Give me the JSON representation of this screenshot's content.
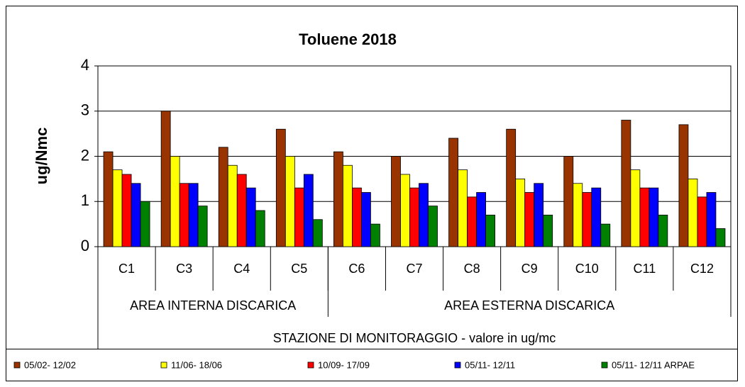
{
  "chart_data": {
    "type": "bar",
    "title": "Toluene 2018",
    "y_label": "ug/Nmc",
    "x_label": "STAZIONE DI MONITORAGGIO - valore in ug/mc",
    "categories": [
      "C1",
      "C3",
      "C4",
      "C5",
      "C6",
      "C7",
      "C8",
      "C9",
      "C10",
      "C11",
      "C12"
    ],
    "groups": [
      {
        "label": "AREA INTERNA DISCARICA",
        "count": 4
      },
      {
        "label": "AREA ESTERNA DISCARICA",
        "count": 7
      }
    ],
    "series": [
      {
        "name": "05/02- 12/02",
        "color": "#993300",
        "values": [
          2.1,
          3.0,
          2.2,
          2.6,
          2.1,
          2.0,
          2.4,
          2.6,
          2.0,
          2.8,
          2.7
        ]
      },
      {
        "name": "11/06- 18/06",
        "color": "#ffff00",
        "values": [
          1.7,
          2.0,
          1.8,
          2.0,
          1.8,
          1.6,
          1.7,
          1.5,
          1.4,
          1.7,
          1.5
        ]
      },
      {
        "name": "10/09- 17/09",
        "color": "#ff0000",
        "values": [
          1.6,
          1.4,
          1.6,
          1.3,
          1.3,
          1.3,
          1.1,
          1.2,
          1.2,
          1.3,
          1.1
        ]
      },
      {
        "name": "05/11- 12/11",
        "color": "#0000ff",
        "values": [
          1.4,
          1.4,
          1.3,
          1.6,
          1.2,
          1.4,
          1.2,
          1.4,
          1.3,
          1.3,
          1.2
        ]
      },
      {
        "name": "05/11- 12/11 ARPAE",
        "color": "#008000",
        "values": [
          1.0,
          0.9,
          0.8,
          0.6,
          0.5,
          0.9,
          0.7,
          0.7,
          0.5,
          0.7,
          0.4
        ]
      }
    ],
    "ylim": [
      0,
      4
    ],
    "yticks": [
      0,
      1,
      2,
      3,
      4
    ],
    "grid": true,
    "legend": "bottom"
  }
}
